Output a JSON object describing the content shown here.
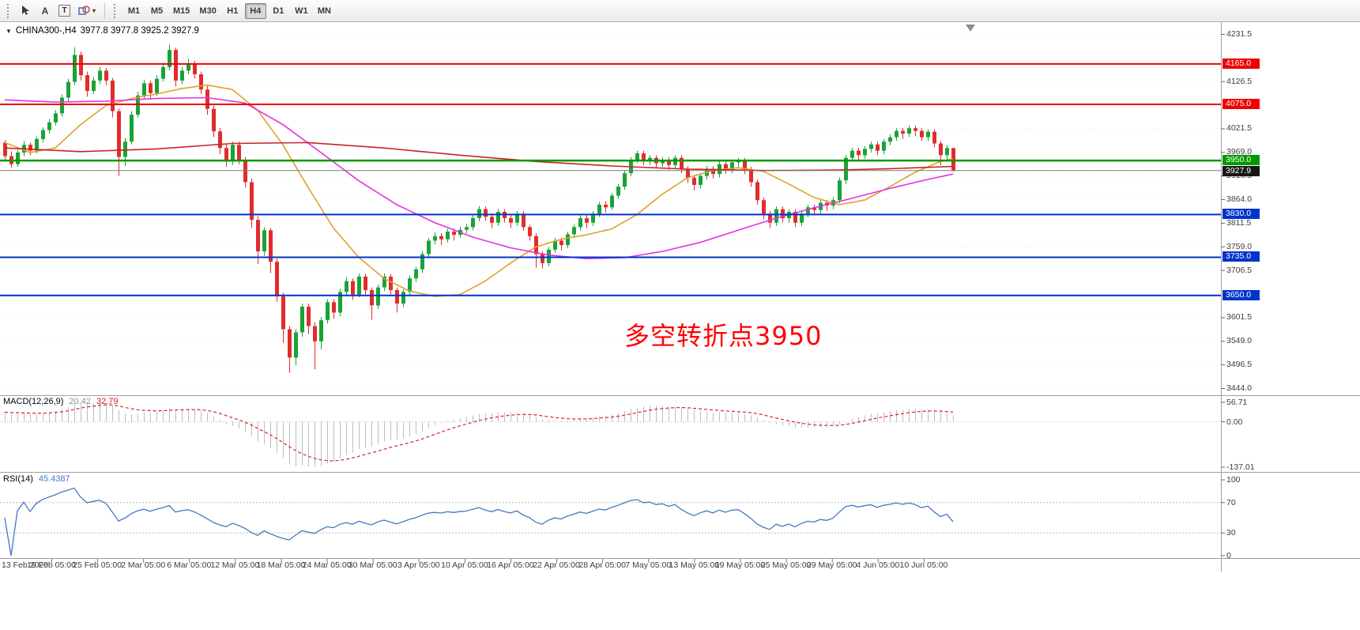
{
  "toolbar": {
    "tools": {
      "text_label": "A",
      "text_box": "T",
      "shapes_caret": "▾"
    },
    "timeframes": [
      "M1",
      "M5",
      "M15",
      "M30",
      "H1",
      "H4",
      "D1",
      "W1",
      "MN"
    ],
    "active_timeframe": "H4"
  },
  "chart": {
    "header": {
      "caret": "▼",
      "symbol_period": "CHINA300-,H4",
      "ohlc": "3977.8 3977.8 3925.2 3927.9"
    },
    "annotation": {
      "text": "多空转折点3950",
      "color": "#ff0000"
    },
    "current_price": {
      "value": "3927.9",
      "price": 3927.9
    },
    "levels": [
      {
        "price": 4165.0,
        "label": "4165.0",
        "color": "#ee0000",
        "type": "resistance"
      },
      {
        "price": 4075.0,
        "label": "4075.0",
        "color": "#ee0000",
        "type": "resistance"
      },
      {
        "price": 3950.0,
        "label": "3950.0",
        "color": "#009900",
        "type": "pivot"
      },
      {
        "price": 3830.0,
        "label": "3830.0",
        "color": "#0033cc",
        "type": "support"
      },
      {
        "price": 3735.0,
        "label": "3735.0",
        "color": "#0033cc",
        "type": "support"
      },
      {
        "price": 3650.0,
        "label": "3650.0",
        "color": "#0033cc",
        "type": "support"
      }
    ],
    "time_axis": [
      "13 Feb 2020",
      "19 Feb 05:00",
      "25 Feb 05:00",
      "2 Mar 05:00",
      "6 Mar 05:00",
      "12 Mar 05:00",
      "18 Mar 05:00",
      "24 Mar 05:00",
      "30 Mar 05:00",
      "3 Apr 05:00",
      "10 Apr 05:00",
      "16 Apr 05:00",
      "22 Apr 05:00",
      "28 Apr 05:00",
      "7 May 05:00",
      "13 May 05:00",
      "19 May 05:00",
      "25 May 05:00",
      "29 May 05:00",
      "4 Jun 05:00",
      "10 Jun 05:00"
    ]
  },
  "chart_data": {
    "type": "candlestick",
    "symbol": "CHINA300-",
    "timeframe": "H4",
    "ylim": [
      3444.0,
      4231.5
    ],
    "price_ticks": [
      4231.5,
      4179.0,
      4126.5,
      4074.0,
      4021.5,
      3969.0,
      3916.5,
      3864.0,
      3811.5,
      3759.0,
      3706.5,
      3654.0,
      3601.5,
      3549.0,
      3496.5,
      3444.0
    ],
    "colors": {
      "bull": "#19a337",
      "bear": "#e22c2c"
    },
    "candles": [
      [
        3990,
        3996,
        3952,
        3960
      ],
      [
        3960,
        3970,
        3934,
        3942
      ],
      [
        3942,
        3974,
        3936,
        3968
      ],
      [
        3968,
        3994,
        3960,
        3985
      ],
      [
        3985,
        3991,
        3962,
        3972
      ],
      [
        3972,
        4004,
        3966,
        3998
      ],
      [
        3998,
        4024,
        3990,
        4018
      ],
      [
        4018,
        4042,
        4010,
        4035
      ],
      [
        4035,
        4062,
        4028,
        4055
      ],
      [
        4055,
        4097,
        4048,
        4090
      ],
      [
        4090,
        4132,
        4082,
        4125
      ],
      [
        4125,
        4202,
        4118,
        4185
      ],
      [
        4185,
        4192,
        4128,
        4140
      ],
      [
        4140,
        4148,
        4092,
        4105
      ],
      [
        4105,
        4136,
        4098,
        4128
      ],
      [
        4128,
        4158,
        4120,
        4150
      ],
      [
        4150,
        4156,
        4118,
        4128
      ],
      [
        4128,
        4134,
        4046,
        4060
      ],
      [
        4060,
        4066,
        3916,
        3958
      ],
      [
        3958,
        4000,
        3938,
        3992
      ],
      [
        3992,
        4060,
        3986,
        4052
      ],
      [
        4052,
        4103,
        4046,
        4095
      ],
      [
        4095,
        4130,
        4088,
        4122
      ],
      [
        4122,
        4128,
        4088,
        4100
      ],
      [
        4100,
        4140,
        4094,
        4132
      ],
      [
        4132,
        4166,
        4126,
        4158
      ],
      [
        4158,
        4208,
        4150,
        4196
      ],
      [
        4196,
        4201,
        4115,
        4128
      ],
      [
        4128,
        4158,
        4120,
        4150
      ],
      [
        4150,
        4176,
        4142,
        4165
      ],
      [
        4165,
        4172,
        4132,
        4142
      ],
      [
        4142,
        4148,
        4098,
        4108
      ],
      [
        4108,
        4116,
        4052,
        4065
      ],
      [
        4065,
        4072,
        4002,
        4015
      ],
      [
        4015,
        4022,
        3964,
        3978
      ],
      [
        3978,
        3986,
        3936,
        3948
      ],
      [
        3948,
        3992,
        3940,
        3985
      ],
      [
        3985,
        3992,
        3942,
        3952
      ],
      [
        3952,
        3958,
        3890,
        3902
      ],
      [
        3902,
        3910,
        3800,
        3818
      ],
      [
        3818,
        3826,
        3720,
        3748
      ],
      [
        3748,
        3802,
        3738,
        3795
      ],
      [
        3795,
        3800,
        3700,
        3725
      ],
      [
        3725,
        3732,
        3636,
        3648
      ],
      [
        3648,
        3656,
        3545,
        3575
      ],
      [
        3575,
        3582,
        3478,
        3512
      ],
      [
        3512,
        3575,
        3495,
        3568
      ],
      [
        3568,
        3632,
        3558,
        3625
      ],
      [
        3625,
        3632,
        3564,
        3582
      ],
      [
        3582,
        3590,
        3486,
        3548
      ],
      [
        3548,
        3602,
        3530,
        3595
      ],
      [
        3595,
        3642,
        3588,
        3635
      ],
      [
        3635,
        3642,
        3598,
        3612
      ],
      [
        3612,
        3665,
        3604,
        3658
      ],
      [
        3658,
        3690,
        3650,
        3682
      ],
      [
        3682,
        3688,
        3640,
        3652
      ],
      [
        3652,
        3699,
        3646,
        3692
      ],
      [
        3692,
        3698,
        3652,
        3662
      ],
      [
        3662,
        3668,
        3596,
        3628
      ],
      [
        3628,
        3674,
        3620,
        3668
      ],
      [
        3668,
        3699,
        3660,
        3692
      ],
      [
        3692,
        3698,
        3652,
        3662
      ],
      [
        3662,
        3668,
        3612,
        3632
      ],
      [
        3632,
        3664,
        3624,
        3658
      ],
      [
        3658,
        3694,
        3650,
        3688
      ],
      [
        3688,
        3714,
        3680,
        3708
      ],
      [
        3708,
        3748,
        3700,
        3742
      ],
      [
        3742,
        3778,
        3735,
        3772
      ],
      [
        3772,
        3790,
        3764,
        3782
      ],
      [
        3782,
        3789,
        3762,
        3775
      ],
      [
        3775,
        3798,
        3768,
        3792
      ],
      [
        3792,
        3799,
        3772,
        3785
      ],
      [
        3785,
        3803,
        3778,
        3796
      ],
      [
        3796,
        3809,
        3788,
        3802
      ],
      [
        3802,
        3828,
        3795,
        3822
      ],
      [
        3822,
        3849,
        3815,
        3842
      ],
      [
        3842,
        3848,
        3816,
        3825
      ],
      [
        3825,
        3832,
        3800,
        3812
      ],
      [
        3812,
        3842,
        3805,
        3836
      ],
      [
        3836,
        3842,
        3812,
        3822
      ],
      [
        3822,
        3828,
        3800,
        3812
      ],
      [
        3812,
        3838,
        3805,
        3832
      ],
      [
        3832,
        3838,
        3794,
        3802
      ],
      [
        3802,
        3808,
        3772,
        3782
      ],
      [
        3782,
        3788,
        3712,
        3742
      ],
      [
        3742,
        3748,
        3710,
        3722
      ],
      [
        3722,
        3758,
        3715,
        3752
      ],
      [
        3752,
        3778,
        3745,
        3772
      ],
      [
        3772,
        3778,
        3750,
        3762
      ],
      [
        3762,
        3792,
        3755,
        3786
      ],
      [
        3786,
        3808,
        3779,
        3802
      ],
      [
        3802,
        3828,
        3795,
        3822
      ],
      [
        3822,
        3828,
        3800,
        3812
      ],
      [
        3812,
        3838,
        3805,
        3832
      ],
      [
        3832,
        3858,
        3825,
        3852
      ],
      [
        3852,
        3860,
        3835,
        3846
      ],
      [
        3846,
        3878,
        3840,
        3872
      ],
      [
        3872,
        3898,
        3865,
        3892
      ],
      [
        3892,
        3928,
        3885,
        3922
      ],
      [
        3922,
        3958,
        3915,
        3952
      ],
      [
        3952,
        3972,
        3944,
        3966
      ],
      [
        3966,
        3972,
        3940,
        3950
      ],
      [
        3950,
        3962,
        3940,
        3956
      ],
      [
        3956,
        3962,
        3934,
        3944
      ],
      [
        3944,
        3958,
        3936,
        3952
      ],
      [
        3952,
        3958,
        3930,
        3940
      ],
      [
        3940,
        3962,
        3932,
        3956
      ],
      [
        3956,
        3962,
        3922,
        3932
      ],
      [
        3932,
        3938,
        3900,
        3912
      ],
      [
        3912,
        3918,
        3884,
        3896
      ],
      [
        3896,
        3922,
        3888,
        3916
      ],
      [
        3916,
        3938,
        3908,
        3932
      ],
      [
        3932,
        3938,
        3910,
        3920
      ],
      [
        3920,
        3948,
        3912,
        3942
      ],
      [
        3942,
        3948,
        3920,
        3930
      ],
      [
        3930,
        3952,
        3922,
        3946
      ],
      [
        3946,
        3956,
        3936,
        3950
      ],
      [
        3950,
        3956,
        3920,
        3930
      ],
      [
        3930,
        3936,
        3892,
        3902
      ],
      [
        3902,
        3908,
        3852,
        3862
      ],
      [
        3862,
        3868,
        3820,
        3832
      ],
      [
        3832,
        3838,
        3800,
        3812
      ],
      [
        3812,
        3848,
        3805,
        3842
      ],
      [
        3842,
        3848,
        3812,
        3822
      ],
      [
        3822,
        3842,
        3812,
        3836
      ],
      [
        3836,
        3842,
        3802,
        3812
      ],
      [
        3812,
        3838,
        3804,
        3832
      ],
      [
        3832,
        3852,
        3824,
        3846
      ],
      [
        3846,
        3852,
        3828,
        3840
      ],
      [
        3840,
        3862,
        3832,
        3856
      ],
      [
        3856,
        3862,
        3838,
        3850
      ],
      [
        3850,
        3868,
        3842,
        3862
      ],
      [
        3862,
        3912,
        3855,
        3906
      ],
      [
        3906,
        3962,
        3898,
        3956
      ],
      [
        3956,
        3978,
        3948,
        3972
      ],
      [
        3972,
        3978,
        3950,
        3962
      ],
      [
        3962,
        3982,
        3954,
        3976
      ],
      [
        3976,
        3992,
        3968,
        3986
      ],
      [
        3986,
        3992,
        3962,
        3972
      ],
      [
        3972,
        3998,
        3964,
        3992
      ],
      [
        3992,
        4008,
        3984,
        4002
      ],
      [
        4002,
        4022,
        3994,
        4016
      ],
      [
        4016,
        4022,
        3998,
        4010
      ],
      [
        4010,
        4028,
        4002,
        4022
      ],
      [
        4022,
        4028,
        4004,
        4016
      ],
      [
        4016,
        4022,
        3994,
        4002
      ],
      [
        4002,
        4020,
        3994,
        4014
      ],
      [
        4014,
        4020,
        3980,
        3988
      ],
      [
        3988,
        3994,
        3940,
        3962
      ],
      [
        3962,
        3984,
        3952,
        3978
      ],
      [
        3977.8,
        3977.8,
        3925.2,
        3927.9
      ]
    ],
    "moving_averages": [
      {
        "name": "ma-fast-orange",
        "color": "#dfa22b",
        "points": [
          [
            0,
            3990
          ],
          [
            4,
            3968
          ],
          [
            8,
            3978
          ],
          [
            12,
            4030
          ],
          [
            16,
            4072
          ],
          [
            20,
            4088
          ],
          [
            24,
            4098
          ],
          [
            28,
            4110
          ],
          [
            32,
            4118
          ],
          [
            36,
            4108
          ],
          [
            40,
            4062
          ],
          [
            44,
            3985
          ],
          [
            48,
            3890
          ],
          [
            52,
            3800
          ],
          [
            56,
            3735
          ],
          [
            60,
            3688
          ],
          [
            64,
            3660
          ],
          [
            68,
            3648
          ],
          [
            72,
            3652
          ],
          [
            76,
            3682
          ],
          [
            80,
            3722
          ],
          [
            84,
            3758
          ],
          [
            88,
            3775
          ],
          [
            92,
            3785
          ],
          [
            96,
            3798
          ],
          [
            100,
            3830
          ],
          [
            104,
            3875
          ],
          [
            108,
            3912
          ],
          [
            112,
            3928
          ],
          [
            116,
            3934
          ],
          [
            120,
            3926
          ],
          [
            124,
            3898
          ],
          [
            128,
            3868
          ],
          [
            132,
            3852
          ],
          [
            136,
            3862
          ],
          [
            140,
            3892
          ],
          [
            144,
            3924
          ],
          [
            148,
            3948
          ],
          [
            150,
            3954
          ]
        ]
      },
      {
        "name": "ma-medium-magenta",
        "color": "#e332e3",
        "points": [
          [
            0,
            4085
          ],
          [
            8,
            4080
          ],
          [
            16,
            4082
          ],
          [
            24,
            4088
          ],
          [
            32,
            4090
          ],
          [
            38,
            4078
          ],
          [
            44,
            4030
          ],
          [
            50,
            3968
          ],
          [
            56,
            3905
          ],
          [
            62,
            3852
          ],
          [
            68,
            3812
          ],
          [
            74,
            3780
          ],
          [
            80,
            3756
          ],
          [
            86,
            3740
          ],
          [
            92,
            3732
          ],
          [
            98,
            3734
          ],
          [
            104,
            3748
          ],
          [
            110,
            3768
          ],
          [
            116,
            3795
          ],
          [
            122,
            3822
          ],
          [
            128,
            3845
          ],
          [
            134,
            3866
          ],
          [
            140,
            3888
          ],
          [
            146,
            3908
          ],
          [
            150,
            3920
          ]
        ]
      },
      {
        "name": "ma-slow-red",
        "color": "#cc2222",
        "points": [
          [
            0,
            3978
          ],
          [
            12,
            3970
          ],
          [
            24,
            3976
          ],
          [
            36,
            3988
          ],
          [
            48,
            3990
          ],
          [
            60,
            3978
          ],
          [
            72,
            3962
          ],
          [
            84,
            3948
          ],
          [
            96,
            3938
          ],
          [
            108,
            3931
          ],
          [
            120,
            3928
          ],
          [
            132,
            3929
          ],
          [
            140,
            3932
          ],
          [
            150,
            3937
          ]
        ]
      }
    ]
  },
  "macd": {
    "label": "MACD(12,26,9)",
    "main_value": "20.42",
    "signal_value": "32.79",
    "axis": [
      "56.71",
      "0.00",
      "-137.01"
    ],
    "params": {
      "fast": 12,
      "slow": 26,
      "signal": 9
    },
    "colors": {
      "histogram": "#bdbdbd",
      "signal": "#dd2222"
    }
  },
  "rsi": {
    "label": "RSI(14)",
    "value": "45.4387",
    "period": 14,
    "levels": [
      70,
      30
    ],
    "axis": [
      "100",
      "70",
      "30",
      "0"
    ],
    "color": "#4478c2"
  }
}
